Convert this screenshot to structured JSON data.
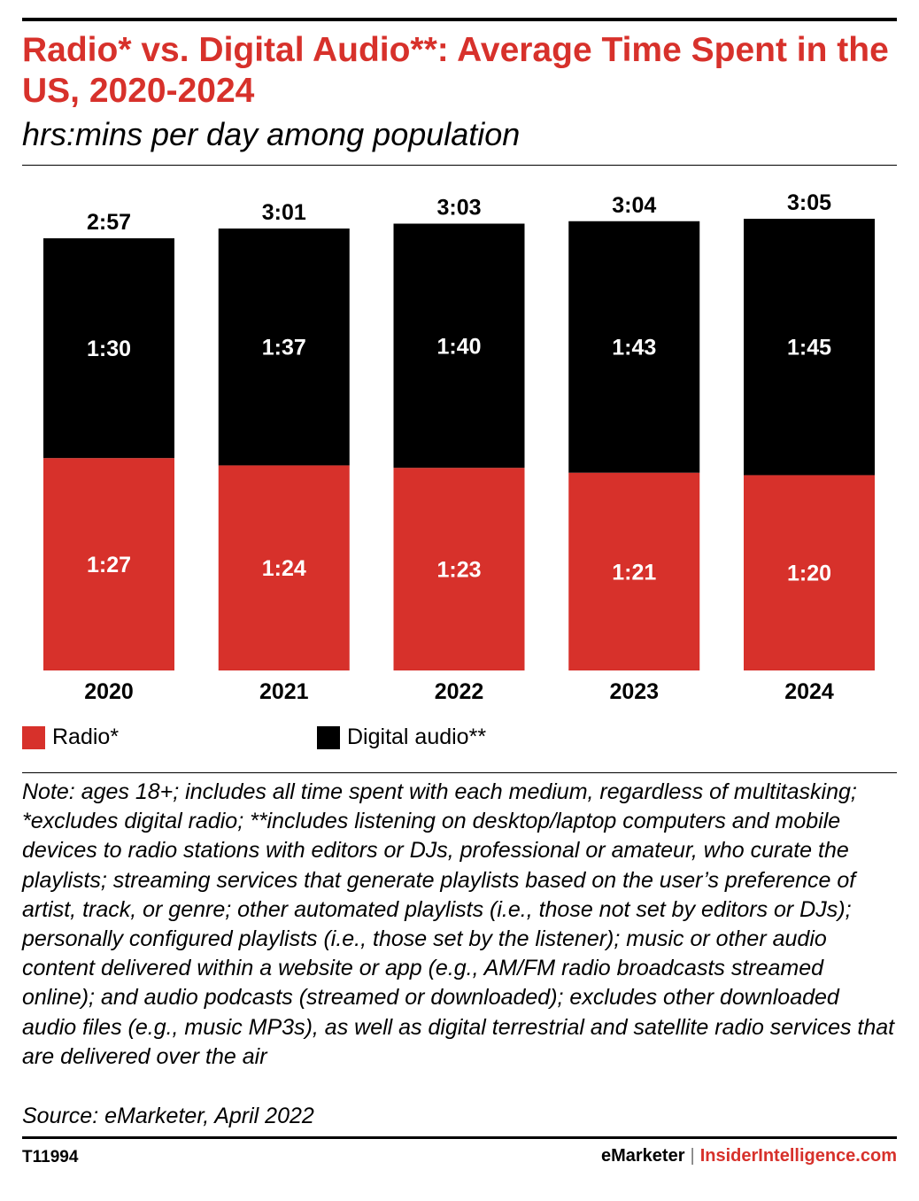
{
  "header": {
    "title": "Radio* vs. Digital Audio**: Average Time Spent in the US, 2020-2024",
    "subtitle": "hrs:mins per day among population"
  },
  "chart_data": {
    "type": "bar",
    "stacked": true,
    "categories": [
      "2020",
      "2021",
      "2022",
      "2023",
      "2024"
    ],
    "series": [
      {
        "name": "Radio*",
        "color": "#d7312b",
        "values": [
          87,
          84,
          83,
          81,
          80
        ],
        "labels": [
          "1:27",
          "1:24",
          "1:23",
          "1:21",
          "1:20"
        ]
      },
      {
        "name": "Digital audio**",
        "color": "#000000",
        "values": [
          90,
          97,
          100,
          103,
          105
        ],
        "labels": [
          "1:30",
          "1:37",
          "1:40",
          "1:43",
          "1:45"
        ]
      }
    ],
    "totals": [
      177,
      181,
      183,
      184,
      185
    ],
    "total_labels": [
      "2:57",
      "3:01",
      "3:03",
      "3:04",
      "3:05"
    ],
    "unit": "minutes per day",
    "ylim": [
      0,
      185
    ],
    "grid": false,
    "legend_position": "bottom-left"
  },
  "footer": {
    "note": "Note: ages 18+; includes all time spent with each medium, regardless of multitasking; *excludes digital radio; **includes listening on desktop/laptop computers and mobile devices to radio stations with editors or DJs, professional or amateur, who curate the playlists; streaming services that generate playlists based on the user’s preference of artist, track, or genre; other automated playlists (i.e., those not set by editors or DJs); personally configured playlists (i.e., those set by the listener); music or other audio content delivered within a website or app (e.g., AM/FM radio broadcasts streamed online); and audio podcasts (streamed or downloaded); excludes other downloaded audio files (e.g., music MP3s), as well as digital terrestrial and satellite radio services that are delivered over the air",
    "source": "Source: eMarketer, April 2022",
    "chart_id": "T11994",
    "brand_primary": "eMarketer",
    "brand_separator": "|",
    "brand_secondary": "InsiderIntelligence.com"
  }
}
